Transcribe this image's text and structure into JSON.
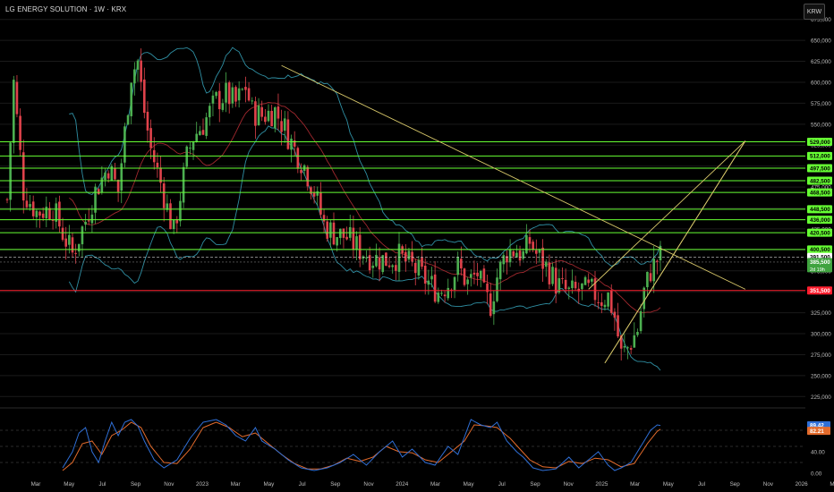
{
  "header": {
    "title": "LG ENERGY SOLUTION · 1W · KRX",
    "currency": "KRW"
  },
  "colors": {
    "up": "#4caf50",
    "down": "#e0424b",
    "bollinger": "#2f8fa3",
    "basis": "#a0282e",
    "level": "#66ff33",
    "support": "#ff1e2e",
    "trend": "#d8c86a",
    "stoch_k": "#2f6fd6",
    "stoch_d": "#e36b2c",
    "grid": "#1a1a1a",
    "axis_text": "#bdbdbd"
  },
  "chart_data": [
    {
      "type": "candlestick",
      "title": "LG ENERGY SOLUTION · 1W · KRX",
      "ylim": [
        212500,
        687500
      ],
      "y_ticks": [
        "675,000",
        "650,000",
        "625,000",
        "600,000",
        "575,000",
        "550,000",
        "525,000",
        "500,000",
        "475,000",
        "450,000",
        "425,000",
        "400,000",
        "375,000",
        "350,000",
        "325,000",
        "300,000",
        "275,000",
        "250,000",
        "225,000"
      ],
      "x_ticks": [
        "Mar",
        "May",
        "Jul",
        "Sep",
        "Nov",
        "2023",
        "Mar",
        "May",
        "Jul",
        "Sep",
        "Nov",
        "2024",
        "Mar",
        "May",
        "Jul",
        "Sep",
        "Nov",
        "2025",
        "Mar",
        "May",
        "Jul",
        "Sep",
        "Nov",
        "2026",
        "Mar"
      ],
      "close_path": [
        [
          0,
          460000
        ],
        [
          2,
          600000
        ],
        [
          5,
          470000
        ],
        [
          9,
          445000
        ],
        [
          14,
          450000
        ],
        [
          17,
          420000
        ],
        [
          20,
          395000
        ],
        [
          24,
          435000
        ],
        [
          27,
          470000
        ],
        [
          31,
          500000
        ],
        [
          34,
          470000
        ],
        [
          36,
          540000
        ],
        [
          38,
          610000
        ],
        [
          40,
          625000
        ],
        [
          42,
          565000
        ],
        [
          44,
          520000
        ],
        [
          47,
          480000
        ],
        [
          51,
          420000
        ],
        [
          55,
          510000
        ],
        [
          57,
          535000
        ],
        [
          60,
          550000
        ],
        [
          64,
          578000
        ],
        [
          67,
          585000
        ],
        [
          70,
          575000
        ],
        [
          73,
          595000
        ],
        [
          75,
          565000
        ],
        [
          78,
          560000
        ],
        [
          82,
          566000
        ],
        [
          85,
          545000
        ],
        [
          88,
          520000
        ],
        [
          91,
          500000
        ],
        [
          94,
          470000
        ],
        [
          97,
          430000
        ],
        [
          100,
          420000
        ],
        [
          104,
          415000
        ],
        [
          108,
          400000
        ],
        [
          112,
          390000
        ],
        [
          116,
          388000
        ],
        [
          120,
          392000
        ],
        [
          124,
          380000
        ],
        [
          128,
          365000
        ],
        [
          132,
          350000
        ],
        [
          135,
          360000
        ],
        [
          138,
          380000
        ],
        [
          141,
          360000
        ],
        [
          144,
          372000
        ],
        [
          146,
          345000
        ],
        [
          148,
          335000
        ],
        [
          150,
          368000
        ],
        [
          153,
          398000
        ],
        [
          156,
          400000
        ],
        [
          158,
          393000
        ],
        [
          160,
          410000
        ],
        [
          162,
          395000
        ],
        [
          164,
          385000
        ],
        [
          166,
          375000
        ],
        [
          168,
          360000
        ],
        [
          172,
          348000
        ],
        [
          176,
          352000
        ],
        [
          179,
          350000
        ],
        [
          182,
          342000
        ],
        [
          184,
          345000
        ],
        [
          186,
          320000
        ],
        [
          188,
          275000
        ],
        [
          190,
          283000
        ],
        [
          193,
          305000
        ],
        [
          195,
          350000
        ],
        [
          197,
          375000
        ],
        [
          199,
          388000
        ],
        [
          200,
          392000
        ]
      ],
      "levels": [
        {
          "label": "529,000",
          "value": 529000,
          "style": "solid"
        },
        {
          "label": "512,000",
          "value": 512000,
          "style": "solid"
        },
        {
          "label": "497,500",
          "value": 497500,
          "style": "solid"
        },
        {
          "label": "482,500",
          "value": 482500,
          "style": "solid"
        },
        {
          "label": "468,500",
          "value": 468500,
          "style": "solid"
        },
        {
          "label": "448,500",
          "value": 448500,
          "style": "solid"
        },
        {
          "label": "436,000",
          "value": 436000,
          "style": "solid"
        },
        {
          "label": "420,500",
          "value": 420500,
          "style": "solid"
        },
        {
          "label": "400,500",
          "value": 400500,
          "style": "solid"
        },
        {
          "label": "391,500",
          "value": 391500,
          "style": "white"
        },
        {
          "label": "385,500",
          "value": 385500,
          "style": "price"
        },
        {
          "label": "351,500",
          "value": 351500,
          "style": "support"
        }
      ],
      "price_countdown": "2d 19h",
      "trendlines": [
        {
          "x0": 84,
          "y0": 620000,
          "x1": 226,
          "y1": 353000
        },
        {
          "x0": 183,
          "y0": 265000,
          "x1": 226,
          "y1": 530000
        },
        {
          "x0": 183,
          "y0": 265000,
          "x1": 226,
          "y1": 530000
        },
        {
          "x0": 178,
          "y0": 353000,
          "x1": 226,
          "y1": 530000
        }
      ]
    },
    {
      "type": "line",
      "name_hint": "stochastic",
      "ylim": [
        -5,
        115
      ],
      "y_ticks": [
        "40.00",
        "0.00"
      ],
      "levels": [
        80,
        50,
        20
      ],
      "readouts": [
        {
          "label": "89.42",
          "color": "#2f6fd6"
        },
        {
          "label": "82.21",
          "color": "#e36b2c"
        }
      ],
      "k_path": [
        [
          17,
          10
        ],
        [
          20,
          40
        ],
        [
          22,
          75
        ],
        [
          24,
          85
        ],
        [
          26,
          40
        ],
        [
          28,
          20
        ],
        [
          30,
          60
        ],
        [
          32,
          95
        ],
        [
          34,
          70
        ],
        [
          36,
          95
        ],
        [
          38,
          100
        ],
        [
          40,
          88
        ],
        [
          42,
          60
        ],
        [
          45,
          25
        ],
        [
          48,
          10
        ],
        [
          52,
          25
        ],
        [
          56,
          65
        ],
        [
          60,
          95
        ],
        [
          64,
          100
        ],
        [
          67,
          90
        ],
        [
          70,
          70
        ],
        [
          73,
          60
        ],
        [
          76,
          85
        ],
        [
          78,
          60
        ],
        [
          82,
          45
        ],
        [
          86,
          25
        ],
        [
          90,
          10
        ],
        [
          94,
          5
        ],
        [
          98,
          10
        ],
        [
          102,
          20
        ],
        [
          106,
          35
        ],
        [
          110,
          15
        ],
        [
          114,
          40
        ],
        [
          118,
          60
        ],
        [
          121,
          30
        ],
        [
          124,
          45
        ],
        [
          128,
          20
        ],
        [
          131,
          15
        ],
        [
          135,
          50
        ],
        [
          138,
          35
        ],
        [
          142,
          100
        ],
        [
          145,
          90
        ],
        [
          148,
          85
        ],
        [
          150,
          95
        ],
        [
          153,
          60
        ],
        [
          156,
          40
        ],
        [
          158,
          30
        ],
        [
          161,
          10
        ],
        [
          164,
          5
        ],
        [
          168,
          8
        ],
        [
          172,
          30
        ],
        [
          175,
          10
        ],
        [
          178,
          25
        ],
        [
          181,
          40
        ],
        [
          184,
          15
        ],
        [
          186,
          5
        ],
        [
          188,
          10
        ],
        [
          191,
          20
        ],
        [
          194,
          50
        ],
        [
          197,
          80
        ],
        [
          199,
          90
        ],
        [
          200,
          89
        ]
      ],
      "d_path": [
        [
          17,
          5
        ],
        [
          20,
          20
        ],
        [
          23,
          55
        ],
        [
          26,
          60
        ],
        [
          29,
          35
        ],
        [
          32,
          70
        ],
        [
          35,
          80
        ],
        [
          38,
          95
        ],
        [
          41,
          85
        ],
        [
          44,
          50
        ],
        [
          48,
          20
        ],
        [
          52,
          18
        ],
        [
          56,
          45
        ],
        [
          60,
          85
        ],
        [
          64,
          95
        ],
        [
          68,
          85
        ],
        [
          72,
          68
        ],
        [
          76,
          75
        ],
        [
          80,
          55
        ],
        [
          84,
          35
        ],
        [
          88,
          18
        ],
        [
          92,
          8
        ],
        [
          96,
          8
        ],
        [
          100,
          15
        ],
        [
          104,
          28
        ],
        [
          108,
          22
        ],
        [
          112,
          30
        ],
        [
          116,
          50
        ],
        [
          120,
          40
        ],
        [
          124,
          38
        ],
        [
          128,
          25
        ],
        [
          132,
          20
        ],
        [
          136,
          40
        ],
        [
          140,
          60
        ],
        [
          143,
          90
        ],
        [
          147,
          88
        ],
        [
          150,
          85
        ],
        [
          154,
          65
        ],
        [
          157,
          45
        ],
        [
          160,
          25
        ],
        [
          164,
          12
        ],
        [
          168,
          10
        ],
        [
          172,
          22
        ],
        [
          176,
          18
        ],
        [
          180,
          28
        ],
        [
          184,
          25
        ],
        [
          188,
          12
        ],
        [
          192,
          18
        ],
        [
          196,
          55
        ],
        [
          199,
          78
        ],
        [
          200,
          82
        ]
      ]
    }
  ]
}
